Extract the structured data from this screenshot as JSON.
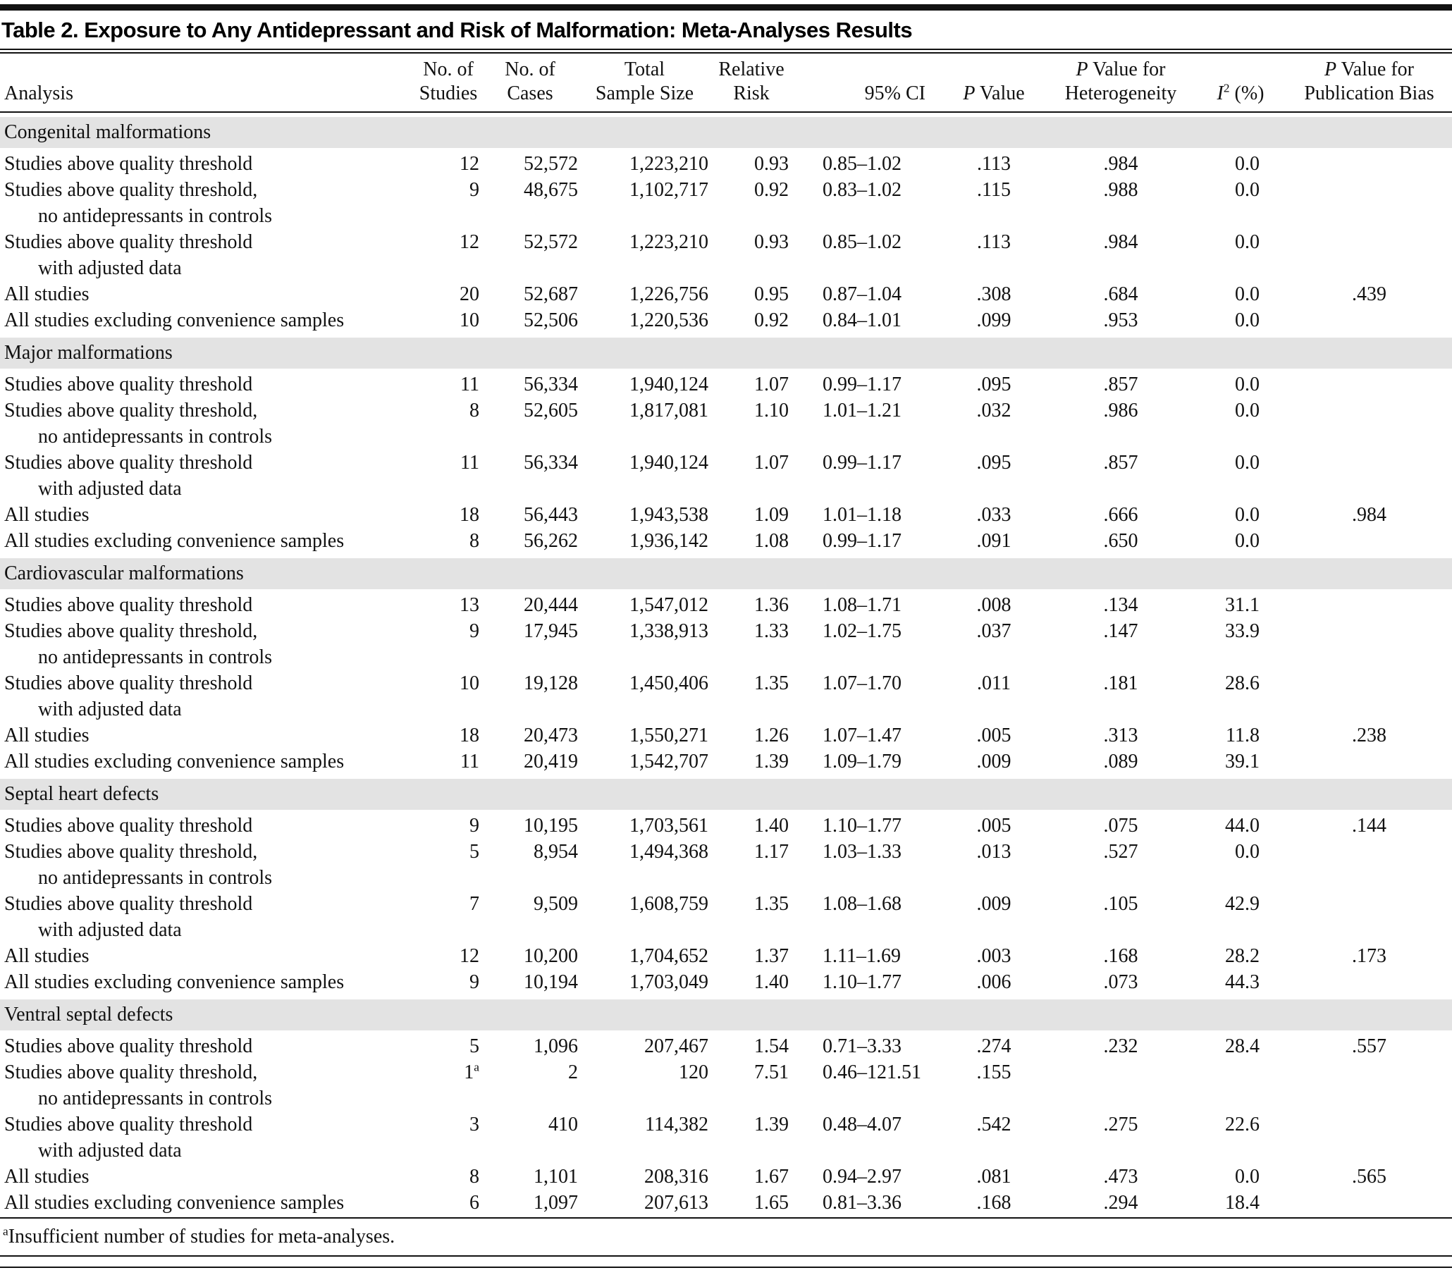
{
  "title": "Table 2. Exposure to Any Antidepressant and Risk of Malformation: Meta-Analyses Results",
  "colors": {
    "section_background": "#e3e3e3",
    "rule": "#121212",
    "text": "#111111"
  },
  "columns": {
    "analysis": {
      "label": "Analysis"
    },
    "studies": {
      "line1": "No. of",
      "line2": "Studies"
    },
    "cases": {
      "line1": "No. of",
      "line2": "Cases"
    },
    "sample": {
      "line1": "Total",
      "line2": "Sample Size"
    },
    "rr": {
      "line1": "Relative",
      "line2": "Risk"
    },
    "ci": {
      "label": "95% CI"
    },
    "p": {
      "italic": "P",
      "rest": " Value"
    },
    "p_het": {
      "line1_italic": "P",
      "line1_rest": " Value for",
      "line2": "Heterogeneity"
    },
    "i2": {
      "base": "I",
      "sup": "2",
      "rest": " (%)"
    },
    "p_bias": {
      "line1_italic": "P",
      "line1_rest": " Value for",
      "line2": "Publication Bias"
    }
  },
  "sections": [
    {
      "name": "Congenital malformations",
      "rows": [
        {
          "analysis": "Studies above quality threshold",
          "analysis_line2": "",
          "studies": "12",
          "studies_sup": "",
          "cases": "52,572",
          "sample": "1,223,210",
          "rr": "0.93",
          "ci": "0.85–1.02",
          "p": ".113",
          "p_het": ".984",
          "i2": "0.0",
          "p_bias": ""
        },
        {
          "analysis": "Studies above quality threshold,",
          "analysis_line2": "no antidepressants in controls",
          "studies": "9",
          "studies_sup": "",
          "cases": "48,675",
          "sample": "1,102,717",
          "rr": "0.92",
          "ci": "0.83–1.02",
          "p": ".115",
          "p_het": ".988",
          "i2": "0.0",
          "p_bias": ""
        },
        {
          "analysis": "Studies above quality threshold",
          "analysis_line2": "with adjusted data",
          "studies": "12",
          "studies_sup": "",
          "cases": "52,572",
          "sample": "1,223,210",
          "rr": "0.93",
          "ci": "0.85–1.02",
          "p": ".113",
          "p_het": ".984",
          "i2": "0.0",
          "p_bias": ""
        },
        {
          "analysis": "All studies",
          "analysis_line2": "",
          "studies": "20",
          "studies_sup": "",
          "cases": "52,687",
          "sample": "1,226,756",
          "rr": "0.95",
          "ci": "0.87–1.04",
          "p": ".308",
          "p_het": ".684",
          "i2": "0.0",
          "p_bias": ".439"
        },
        {
          "analysis": "All studies excluding convenience samples",
          "analysis_line2": "",
          "studies": "10",
          "studies_sup": "",
          "cases": "52,506",
          "sample": "1,220,536",
          "rr": "0.92",
          "ci": "0.84–1.01",
          "p": ".099",
          "p_het": ".953",
          "i2": "0.0",
          "p_bias": ""
        }
      ]
    },
    {
      "name": "Major malformations",
      "rows": [
        {
          "analysis": "Studies above quality threshold",
          "analysis_line2": "",
          "studies": "11",
          "studies_sup": "",
          "cases": "56,334",
          "sample": "1,940,124",
          "rr": "1.07",
          "ci": "0.99–1.17",
          "p": ".095",
          "p_het": ".857",
          "i2": "0.0",
          "p_bias": ""
        },
        {
          "analysis": "Studies above quality threshold,",
          "analysis_line2": "no antidepressants in controls",
          "studies": "8",
          "studies_sup": "",
          "cases": "52,605",
          "sample": "1,817,081",
          "rr": "1.10",
          "ci": "1.01–1.21",
          "p": ".032",
          "p_het": ".986",
          "i2": "0.0",
          "p_bias": ""
        },
        {
          "analysis": "Studies above quality threshold",
          "analysis_line2": "with adjusted data",
          "studies": "11",
          "studies_sup": "",
          "cases": "56,334",
          "sample": "1,940,124",
          "rr": "1.07",
          "ci": "0.99–1.17",
          "p": ".095",
          "p_het": ".857",
          "i2": "0.0",
          "p_bias": ""
        },
        {
          "analysis": "All studies",
          "analysis_line2": "",
          "studies": "18",
          "studies_sup": "",
          "cases": "56,443",
          "sample": "1,943,538",
          "rr": "1.09",
          "ci": "1.01–1.18",
          "p": ".033",
          "p_het": ".666",
          "i2": "0.0",
          "p_bias": ".984"
        },
        {
          "analysis": "All studies excluding convenience samples",
          "analysis_line2": "",
          "studies": "8",
          "studies_sup": "",
          "cases": "56,262",
          "sample": "1,936,142",
          "rr": "1.08",
          "ci": "0.99–1.17",
          "p": ".091",
          "p_het": ".650",
          "i2": "0.0",
          "p_bias": ""
        }
      ]
    },
    {
      "name": "Cardiovascular malformations",
      "rows": [
        {
          "analysis": "Studies above quality threshold",
          "analysis_line2": "",
          "studies": "13",
          "studies_sup": "",
          "cases": "20,444",
          "sample": "1,547,012",
          "rr": "1.36",
          "ci": "1.08–1.71",
          "p": ".008",
          "p_het": ".134",
          "i2": "31.1",
          "p_bias": ""
        },
        {
          "analysis": "Studies above quality threshold,",
          "analysis_line2": "no antidepressants in controls",
          "studies": "9",
          "studies_sup": "",
          "cases": "17,945",
          "sample": "1,338,913",
          "rr": "1.33",
          "ci": "1.02–1.75",
          "p": ".037",
          "p_het": ".147",
          "i2": "33.9",
          "p_bias": ""
        },
        {
          "analysis": "Studies above quality threshold",
          "analysis_line2": "with adjusted data",
          "studies": "10",
          "studies_sup": "",
          "cases": "19,128",
          "sample": "1,450,406",
          "rr": "1.35",
          "ci": "1.07–1.70",
          "p": ".011",
          "p_het": ".181",
          "i2": "28.6",
          "p_bias": ""
        },
        {
          "analysis": "All studies",
          "analysis_line2": "",
          "studies": "18",
          "studies_sup": "",
          "cases": "20,473",
          "sample": "1,550,271",
          "rr": "1.26",
          "ci": "1.07–1.47",
          "p": ".005",
          "p_het": ".313",
          "i2": "11.8",
          "p_bias": ".238"
        },
        {
          "analysis": "All studies excluding convenience samples",
          "analysis_line2": "",
          "studies": "11",
          "studies_sup": "",
          "cases": "20,419",
          "sample": "1,542,707",
          "rr": "1.39",
          "ci": "1.09–1.79",
          "p": ".009",
          "p_het": ".089",
          "i2": "39.1",
          "p_bias": ""
        }
      ]
    },
    {
      "name": "Septal heart defects",
      "rows": [
        {
          "analysis": "Studies above quality threshold",
          "analysis_line2": "",
          "studies": "9",
          "studies_sup": "",
          "cases": "10,195",
          "sample": "1,703,561",
          "rr": "1.40",
          "ci": "1.10–1.77",
          "p": ".005",
          "p_het": ".075",
          "i2": "44.0",
          "p_bias": ".144"
        },
        {
          "analysis": "Studies above quality threshold,",
          "analysis_line2": "no antidepressants in controls",
          "studies": "5",
          "studies_sup": "",
          "cases": "8,954",
          "sample": "1,494,368",
          "rr": "1.17",
          "ci": "1.03–1.33",
          "p": ".013",
          "p_het": ".527",
          "i2": "0.0",
          "p_bias": ""
        },
        {
          "analysis": "Studies above quality threshold",
          "analysis_line2": "with adjusted data",
          "studies": "7",
          "studies_sup": "",
          "cases": "9,509",
          "sample": "1,608,759",
          "rr": "1.35",
          "ci": "1.08–1.68",
          "p": ".009",
          "p_het": ".105",
          "i2": "42.9",
          "p_bias": ""
        },
        {
          "analysis": "All studies",
          "analysis_line2": "",
          "studies": "12",
          "studies_sup": "",
          "cases": "10,200",
          "sample": "1,704,652",
          "rr": "1.37",
          "ci": "1.11–1.69",
          "p": ".003",
          "p_het": ".168",
          "i2": "28.2",
          "p_bias": ".173"
        },
        {
          "analysis": "All studies excluding convenience samples",
          "analysis_line2": "",
          "studies": "9",
          "studies_sup": "",
          "cases": "10,194",
          "sample": "1,703,049",
          "rr": "1.40",
          "ci": "1.10–1.77",
          "p": ".006",
          "p_het": ".073",
          "i2": "44.3",
          "p_bias": ""
        }
      ]
    },
    {
      "name": "Ventral septal defects",
      "rows": [
        {
          "analysis": "Studies above quality threshold",
          "analysis_line2": "",
          "studies": "5",
          "studies_sup": "",
          "cases": "1,096",
          "sample": "207,467",
          "rr": "1.54",
          "ci": "0.71–3.33",
          "p": ".274",
          "p_het": ".232",
          "i2": "28.4",
          "p_bias": ".557"
        },
        {
          "analysis": "Studies above quality threshold,",
          "analysis_line2": "no antidepressants in controls",
          "studies": "1",
          "studies_sup": "a",
          "cases": "2",
          "sample": "120",
          "rr": "7.51",
          "ci": "0.46–121.51",
          "p": ".155",
          "p_het": "",
          "i2": "",
          "p_bias": ""
        },
        {
          "analysis": "Studies above quality threshold",
          "analysis_line2": "with adjusted data",
          "studies": "3",
          "studies_sup": "",
          "cases": "410",
          "sample": "114,382",
          "rr": "1.39",
          "ci": "0.48–4.07",
          "p": ".542",
          "p_het": ".275",
          "i2": "22.6",
          "p_bias": ""
        },
        {
          "analysis": "All studies",
          "analysis_line2": "",
          "studies": "8",
          "studies_sup": "",
          "cases": "1,101",
          "sample": "208,316",
          "rr": "1.67",
          "ci": "0.94–2.97",
          "p": ".081",
          "p_het": ".473",
          "i2": "0.0",
          "p_bias": ".565"
        },
        {
          "analysis": "All studies excluding convenience samples",
          "analysis_line2": "",
          "studies": "6",
          "studies_sup": "",
          "cases": "1,097",
          "sample": "207,613",
          "rr": "1.65",
          "ci": "0.81–3.36",
          "p": ".168",
          "p_het": ".294",
          "i2": "18.4",
          "p_bias": ""
        }
      ]
    }
  ],
  "footnote": {
    "marker": "a",
    "text": "Insufficient number of studies for meta-analyses."
  }
}
